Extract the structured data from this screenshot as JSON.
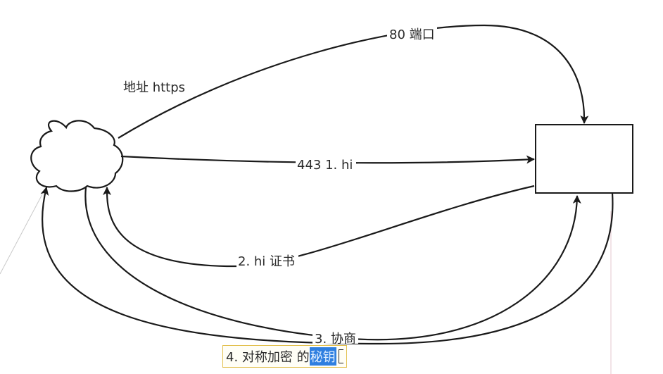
{
  "nodes": {
    "client": {
      "shape": "cloud",
      "label": ""
    },
    "server": {
      "shape": "rectangle",
      "label": ""
    }
  },
  "edges": [
    {
      "id": "https-address",
      "from": "client",
      "to": "server",
      "label": "80 端口"
    },
    {
      "id": "hi",
      "from": "client",
      "to": "server",
      "label": "443 1. hi"
    },
    {
      "id": "certificate",
      "from": "server",
      "to": "client",
      "label": "2. hi 证书"
    },
    {
      "id": "negotiate",
      "from": "client",
      "to": "server",
      "label": "3. 协商"
    },
    {
      "id": "symmetric-key",
      "from": "server",
      "to": "client",
      "label": ""
    }
  ],
  "annotations": {
    "address_label": "地址 https"
  },
  "editing_label": {
    "text_before": "4. 对称加密 的 ",
    "text_selected": "秘钥"
  },
  "colors": {
    "stroke": "#1a1a1a",
    "selection": "#2f7fe0",
    "edit_border": "#e2bf4a"
  }
}
